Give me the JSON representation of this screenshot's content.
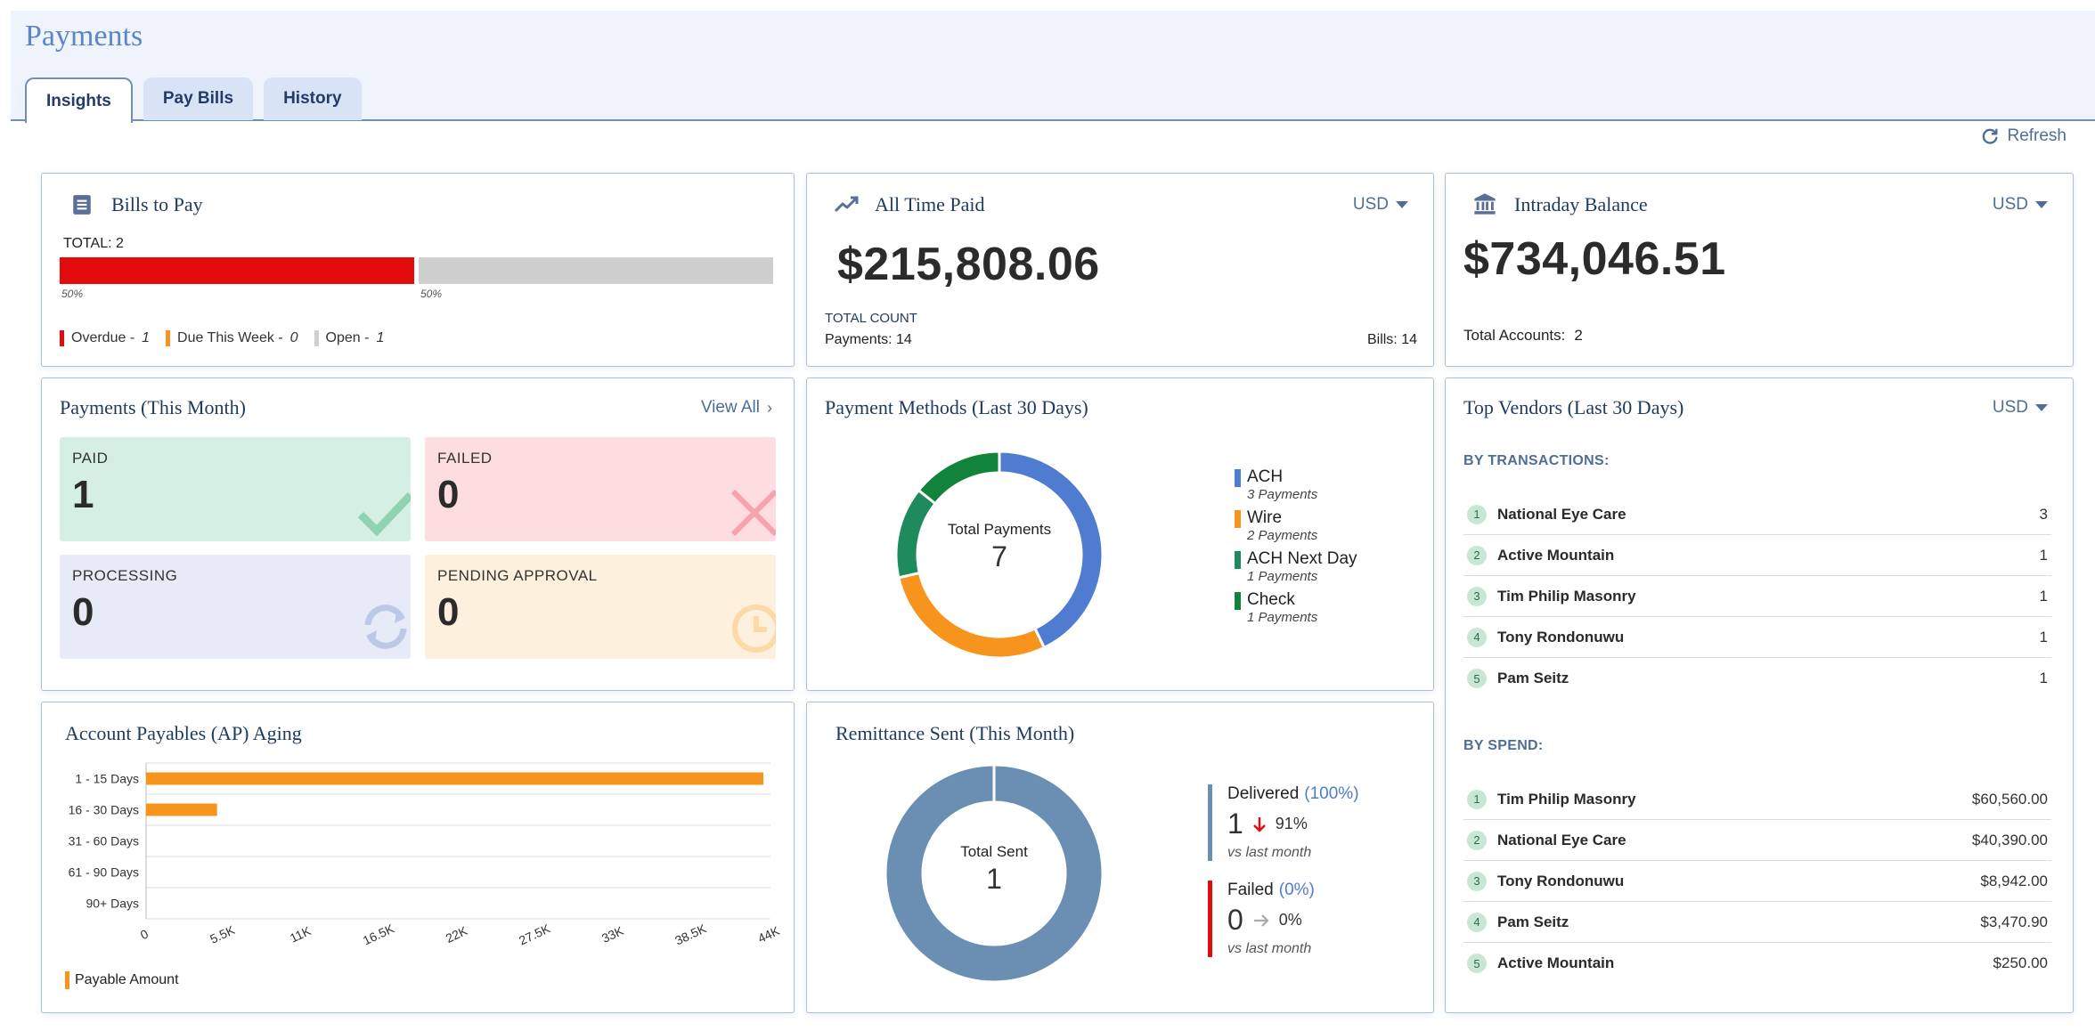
{
  "header": {
    "title": "Payments"
  },
  "tabs": [
    {
      "label": "Insights"
    },
    {
      "label": "Pay Bills"
    },
    {
      "label": "History"
    }
  ],
  "toolbar": {
    "refresh_label": "Refresh"
  },
  "bills": {
    "title": "Bills to Pay",
    "total": "TOTAL: 2",
    "seg1_pct": "50%",
    "seg2_pct": "50%",
    "legend": [
      {
        "label": "Overdue - ",
        "count": "1",
        "color": "#e30b0b"
      },
      {
        "label": "Due This Week - ",
        "count": "0",
        "color": "#f7941d"
      },
      {
        "label": "Open - ",
        "count": "1",
        "color": "#cfcfcf"
      }
    ]
  },
  "all_time": {
    "title": "All Time Paid",
    "currency": "USD",
    "amount": "$215,808.06",
    "count_label": "TOTAL COUNT",
    "payments": "Payments: 14",
    "bills": "Bills: 14"
  },
  "intraday": {
    "title": "Intraday Balance",
    "currency": "USD",
    "amount": "$734,046.51",
    "accounts_label": "Total Accounts:",
    "accounts_value": "2"
  },
  "payments_month": {
    "title": "Payments (This Month)",
    "view_all": "View All",
    "tiles": [
      {
        "label": "PAID",
        "value": "1"
      },
      {
        "label": "FAILED",
        "value": "0"
      },
      {
        "label": "PROCESSING",
        "value": "0"
      },
      {
        "label": "PENDING APPROVAL",
        "value": "0"
      }
    ]
  },
  "methods": {
    "title": "Payment Methods (Last 30 Days)",
    "center_label": "Total Payments",
    "center_value": "7",
    "legend": [
      {
        "name": "ACH",
        "sub": "3 Payments"
      },
      {
        "name": "Wire",
        "sub": "2 Payments"
      },
      {
        "name": "ACH Next Day",
        "sub": "1 Payments"
      },
      {
        "name": "Check",
        "sub": "1 Payments"
      }
    ]
  },
  "vendors": {
    "title": "Top Vendors (Last 30 Days)",
    "currency": "USD",
    "by_tx_label": "BY TRANSACTIONS:",
    "by_tx": [
      {
        "rank": "1",
        "name": "National Eye Care",
        "value": "3"
      },
      {
        "rank": "2",
        "name": "Active Mountain",
        "value": "1"
      },
      {
        "rank": "3",
        "name": "Tim Philip Masonry",
        "value": "1"
      },
      {
        "rank": "4",
        "name": "Tony Rondonuwu",
        "value": "1"
      },
      {
        "rank": "5",
        "name": "Pam Seitz",
        "value": "1"
      }
    ],
    "by_spend_label": "BY SPEND:",
    "by_spend": [
      {
        "rank": "1",
        "name": "Tim Philip Masonry",
        "value": "$60,560.00"
      },
      {
        "rank": "2",
        "name": "National Eye Care",
        "value": "$40,390.00"
      },
      {
        "rank": "3",
        "name": "Tony Rondonuwu",
        "value": "$8,942.00"
      },
      {
        "rank": "4",
        "name": "Pam Seitz",
        "value": "$3,470.90"
      },
      {
        "rank": "5",
        "name": "Active Mountain",
        "value": "$250.00"
      }
    ]
  },
  "aging": {
    "title": "Account Payables (AP) Aging"
  },
  "remit": {
    "title": "Remittance Sent (This Month)",
    "center_label": "Total Sent",
    "center_value": "1",
    "delivered_label": "Delivered",
    "delivered_pct": "(100%)",
    "delivered_value": "1",
    "delivered_change": "91%",
    "failed_label": "Failed",
    "failed_pct": "(0%)",
    "failed_value": "0",
    "failed_change": "0%",
    "vs": "vs last month"
  },
  "chart_data": [
    {
      "type": "pie",
      "title": "Payment Methods (Last 30 Days)",
      "categories": [
        "ACH",
        "Wire",
        "ACH Next Day",
        "Check"
      ],
      "values": [
        3,
        2,
        1,
        1
      ],
      "colors": [
        "#4f7bd0",
        "#f7941d",
        "#1f8a5b",
        "#12843a"
      ]
    },
    {
      "type": "bar",
      "title": "Account Payables (AP) Aging",
      "categories": [
        "1 - 15 Days",
        "16 - 30 Days",
        "31 - 60 Days",
        "61 - 90 Days",
        "90+ Days"
      ],
      "series": [
        {
          "name": "Payable Amount",
          "values": [
            43500,
            5000,
            0,
            0,
            0
          ]
        }
      ],
      "xticks": [
        "0",
        "5.5K",
        "11K",
        "16.5K",
        "22K",
        "27.5K",
        "33K",
        "38.5K",
        "44K"
      ],
      "xlim": [
        0,
        44000
      ],
      "color": "#f7941d"
    },
    {
      "type": "pie",
      "title": "Remittance Sent (This Month)",
      "categories": [
        "Delivered",
        "Failed"
      ],
      "values": [
        1,
        0
      ],
      "colors": [
        "#6b8fb3",
        "#e30b0b"
      ]
    }
  ]
}
